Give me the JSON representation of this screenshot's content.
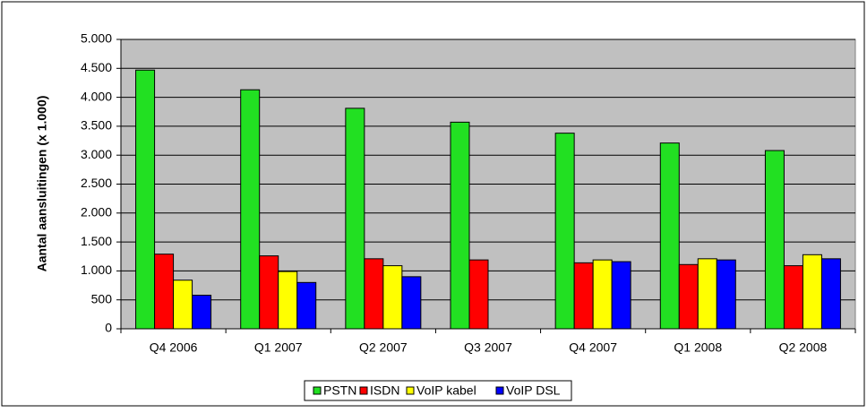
{
  "chart_data": {
    "type": "bar",
    "y_label": "Aantal aansluitingen (x 1.000)",
    "categories": [
      "Q4 2006",
      "Q1 2007",
      "Q2 2007",
      "Q3 2007",
      "Q4 2007",
      "Q1 2008",
      "Q2 2008"
    ],
    "series": [
      {
        "name": "PSTN",
        "color": "#22e022",
        "values": [
          4470,
          4130,
          3810,
          3570,
          3380,
          3210,
          3080
        ]
      },
      {
        "name": "ISDN",
        "color": "#ff0000",
        "values": [
          1290,
          1260,
          1210,
          1190,
          1140,
          1110,
          1090
        ]
      },
      {
        "name": "VoIP kabel",
        "color": "#ffff00",
        "values": [
          840,
          990,
          1090,
          null,
          1190,
          1210,
          1280
        ]
      },
      {
        "name": "VoIP DSL",
        "color": "#0000ff",
        "values": [
          580,
          800,
          900,
          null,
          1160,
          1190,
          1210
        ]
      }
    ],
    "ylim": [
      0,
      5000
    ],
    "yticks": [
      0,
      500,
      {
        "value": 1000,
        "label": "1.000"
      },
      {
        "value": 1500,
        "label": "1.500"
      },
      {
        "value": 2000,
        "label": "2.000"
      },
      {
        "value": 2500,
        "label": "2.500"
      },
      {
        "value": 3000,
        "label": "3.000"
      },
      {
        "value": 3500,
        "label": "3.500"
      },
      {
        "value": 4000,
        "label": "4.000"
      },
      {
        "value": 4500,
        "label": "4.500"
      },
      {
        "value": 5000,
        "label": "5.000"
      }
    ],
    "grid": true,
    "legend": "bottom"
  }
}
